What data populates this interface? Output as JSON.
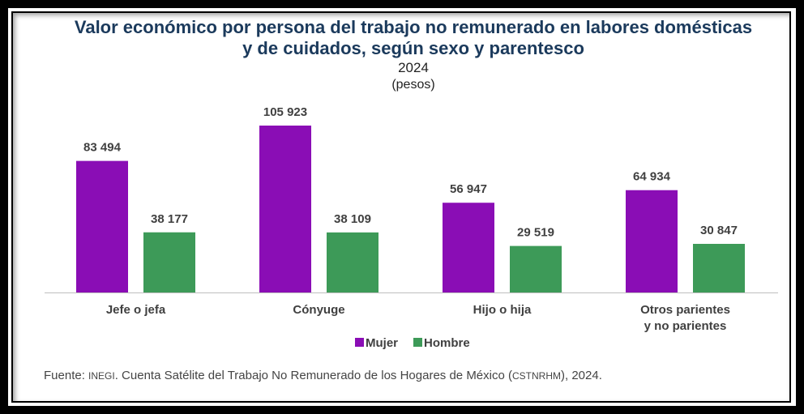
{
  "chart_data": {
    "type": "bar",
    "title": "Valor económico por persona del trabajo no remunerado en labores domésticas y de cuidados, según sexo y parentesco",
    "title_lines": [
      "Valor económico por persona del trabajo no remunerado en labores domésticas",
      "y de cuidados, según sexo y parentesco"
    ],
    "subtitle": "2024",
    "unit": "(pesos)",
    "categories": [
      [
        "Jefe o jefa"
      ],
      [
        "Cónyuge"
      ],
      [
        "Hijo o hija"
      ],
      [
        "Otros parientes",
        "y no parientes"
      ]
    ],
    "series": [
      {
        "name": "Mujer",
        "color": "#8A0DB5",
        "values": [
          83494,
          105923,
          56947,
          64934
        ],
        "labels": [
          "83 494",
          "105 923",
          "56 947",
          "64 934"
        ]
      },
      {
        "name": "Hombre",
        "color": "#3D9A58",
        "values": [
          38177,
          38109,
          29519,
          30847
        ],
        "labels": [
          "38 177",
          "38 109",
          "29 519",
          "30 847"
        ]
      }
    ],
    "ylim": [
      0,
      105923
    ],
    "grid": false,
    "legend": "bottom"
  },
  "source": {
    "prefix": "Fuente: ",
    "org": "INEGI",
    "text": ". Cuenta Satélite del Trabajo No Remunerado de los Hogares de México (",
    "abbr": "CSTNRHM",
    "suffix": "), 2024."
  }
}
